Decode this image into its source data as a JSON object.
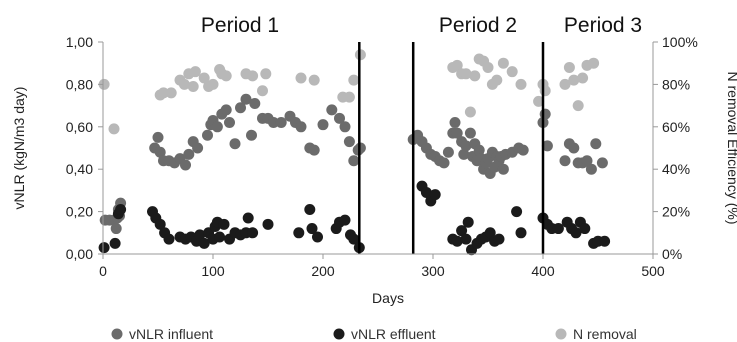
{
  "chart_data": {
    "type": "scatter",
    "x": {
      "label": "Days",
      "lim": [
        0,
        500
      ],
      "ticks": [
        "0",
        "100",
        "200",
        "300",
        "400",
        "500"
      ]
    },
    "y_left": {
      "label": "vNLR (kgN/m3 day)",
      "lim": [
        0,
        1
      ],
      "ticks": [
        "0,00",
        "0,20",
        "0,40",
        "0,60",
        "0,80",
        "1,00"
      ]
    },
    "y_right": {
      "label": "N removal Efficiency (%)",
      "lim": [
        0,
        100
      ],
      "ticks": [
        "0%",
        "20%",
        "40%",
        "60%",
        "80%",
        "100%"
      ]
    },
    "period_labels": [
      "Period 1",
      "Period 2",
      "Period 3"
    ],
    "period_boundaries": [
      233,
      282,
      400
    ],
    "colors": {
      "influent": "#6b6b6b",
      "effluent": "#1b1b1b",
      "removal": "#b8b8b8"
    },
    "series": [
      {
        "name": "vNLR influent",
        "axis": "left",
        "points": [
          [
            2,
            0.16
          ],
          [
            6,
            0.16
          ],
          [
            10,
            0.16
          ],
          [
            13,
            0.17
          ],
          [
            15,
            0.18
          ],
          [
            16,
            0.24
          ],
          [
            14,
            0.21
          ],
          [
            12,
            0.12
          ],
          [
            47,
            0.5
          ],
          [
            50,
            0.55
          ],
          [
            52,
            0.48
          ],
          [
            55,
            0.44
          ],
          [
            60,
            0.44
          ],
          [
            65,
            0.43
          ],
          [
            70,
            0.45
          ],
          [
            75,
            0.42
          ],
          [
            78,
            0.47
          ],
          [
            82,
            0.53
          ],
          [
            86,
            0.5
          ],
          [
            95,
            0.56
          ],
          [
            98,
            0.61
          ],
          [
            100,
            0.63
          ],
          [
            104,
            0.6
          ],
          [
            108,
            0.66
          ],
          [
            112,
            0.68
          ],
          [
            115,
            0.62
          ],
          [
            120,
            0.52
          ],
          [
            125,
            0.69
          ],
          [
            130,
            0.73
          ],
          [
            135,
            0.56
          ],
          [
            138,
            0.71
          ],
          [
            145,
            0.64
          ],
          [
            150,
            0.64
          ],
          [
            155,
            0.62
          ],
          [
            162,
            0.62
          ],
          [
            170,
            0.65
          ],
          [
            175,
            0.62
          ],
          [
            180,
            0.6
          ],
          [
            188,
            0.5
          ],
          [
            192,
            0.49
          ],
          [
            200,
            0.61
          ],
          [
            208,
            0.68
          ],
          [
            215,
            0.64
          ],
          [
            220,
            0.6
          ],
          [
            224,
            0.53
          ],
          [
            228,
            0.44
          ],
          [
            232,
            0.49
          ],
          [
            234,
            0.5
          ],
          [
            282,
            0.54
          ],
          [
            286,
            0.56
          ],
          [
            290,
            0.53
          ],
          [
            294,
            0.5
          ],
          [
            298,
            0.47
          ],
          [
            302,
            0.46
          ],
          [
            306,
            0.44
          ],
          [
            310,
            0.43
          ],
          [
            314,
            0.48
          ],
          [
            318,
            0.57
          ],
          [
            320,
            0.62
          ],
          [
            322,
            0.57
          ],
          [
            326,
            0.53
          ],
          [
            328,
            0.47
          ],
          [
            330,
            0.51
          ],
          [
            334,
            0.57
          ],
          [
            336,
            0.46
          ],
          [
            338,
            0.52
          ],
          [
            340,
            0.44
          ],
          [
            342,
            0.49
          ],
          [
            344,
            0.45
          ],
          [
            346,
            0.4
          ],
          [
            348,
            0.43
          ],
          [
            350,
            0.45
          ],
          [
            352,
            0.38
          ],
          [
            354,
            0.48
          ],
          [
            356,
            0.41
          ],
          [
            358,
            0.46
          ],
          [
            360,
            0.44
          ],
          [
            362,
            0.46
          ],
          [
            364,
            0.4
          ],
          [
            366,
            0.47
          ],
          [
            372,
            0.48
          ],
          [
            378,
            0.5
          ],
          [
            382,
            0.49
          ],
          [
            400,
            0.62
          ],
          [
            402,
            0.66
          ],
          [
            404,
            0.51
          ],
          [
            420,
            0.44
          ],
          [
            424,
            0.52
          ],
          [
            428,
            0.5
          ],
          [
            432,
            0.43
          ],
          [
            436,
            0.43
          ],
          [
            440,
            0.44
          ],
          [
            444,
            0.4
          ],
          [
            448,
            0.52
          ],
          [
            454,
            0.43
          ]
        ]
      },
      {
        "name": "vNLR effluent",
        "axis": "left",
        "points": [
          [
            1,
            0.03
          ],
          [
            11,
            0.05
          ],
          [
            14,
            0.19
          ],
          [
            16,
            0.21
          ],
          [
            45,
            0.2
          ],
          [
            48,
            0.17
          ],
          [
            52,
            0.14
          ],
          [
            56,
            0.1
          ],
          [
            60,
            0.07
          ],
          [
            70,
            0.08
          ],
          [
            75,
            0.07
          ],
          [
            80,
            0.08
          ],
          [
            85,
            0.06
          ],
          [
            88,
            0.09
          ],
          [
            92,
            0.05
          ],
          [
            96,
            0.1
          ],
          [
            100,
            0.07
          ],
          [
            102,
            0.13
          ],
          [
            104,
            0.15
          ],
          [
            106,
            0.08
          ],
          [
            110,
            0.14
          ],
          [
            115,
            0.07
          ],
          [
            120,
            0.1
          ],
          [
            125,
            0.09
          ],
          [
            130,
            0.1
          ],
          [
            132,
            0.17
          ],
          [
            136,
            0.1
          ],
          [
            150,
            0.14
          ],
          [
            178,
            0.1
          ],
          [
            188,
            0.21
          ],
          [
            190,
            0.12
          ],
          [
            195,
            0.08
          ],
          [
            212,
            0.12
          ],
          [
            215,
            0.15
          ],
          [
            220,
            0.16
          ],
          [
            225,
            0.09
          ],
          [
            228,
            0.07
          ],
          [
            233,
            0.03
          ],
          [
            290,
            0.32
          ],
          [
            294,
            0.29
          ],
          [
            298,
            0.25
          ],
          [
            302,
            0.28
          ],
          [
            318,
            0.07
          ],
          [
            322,
            0.06
          ],
          [
            326,
            0.11
          ],
          [
            330,
            0.07
          ],
          [
            332,
            0.15
          ],
          [
            335,
            0.02
          ],
          [
            340,
            0.05
          ],
          [
            344,
            0.07
          ],
          [
            348,
            0.08
          ],
          [
            352,
            0.1
          ],
          [
            356,
            0.06
          ],
          [
            360,
            0.07
          ],
          [
            376,
            0.2
          ],
          [
            380,
            0.1
          ],
          [
            400,
            0.17
          ],
          [
            404,
            0.14
          ],
          [
            408,
            0.12
          ],
          [
            414,
            0.12
          ],
          [
            422,
            0.15
          ],
          [
            426,
            0.12
          ],
          [
            430,
            0.1
          ],
          [
            434,
            0.15
          ],
          [
            438,
            0.12
          ],
          [
            446,
            0.05
          ],
          [
            450,
            0.06
          ],
          [
            456,
            0.06
          ]
        ]
      },
      {
        "name": "N removal",
        "axis": "right",
        "points": [
          [
            1,
            80
          ],
          [
            10,
            59
          ],
          [
            52,
            75
          ],
          [
            55,
            76
          ],
          [
            62,
            76
          ],
          [
            70,
            82
          ],
          [
            74,
            80
          ],
          [
            78,
            85
          ],
          [
            82,
            79
          ],
          [
            84,
            86
          ],
          [
            92,
            83
          ],
          [
            96,
            79
          ],
          [
            100,
            80
          ],
          [
            106,
            87
          ],
          [
            108,
            85
          ],
          [
            112,
            84
          ],
          [
            130,
            85
          ],
          [
            136,
            84
          ],
          [
            145,
            77
          ],
          [
            148,
            85
          ],
          [
            180,
            83
          ],
          [
            192,
            82
          ],
          [
            218,
            74
          ],
          [
            224,
            74
          ],
          [
            228,
            82
          ],
          [
            234,
            94
          ],
          [
            318,
            88
          ],
          [
            322,
            89
          ],
          [
            326,
            85
          ],
          [
            330,
            85
          ],
          [
            334,
            67
          ],
          [
            338,
            84
          ],
          [
            342,
            92
          ],
          [
            346,
            91
          ],
          [
            350,
            88
          ],
          [
            354,
            80
          ],
          [
            358,
            82
          ],
          [
            364,
            90
          ],
          [
            372,
            86
          ],
          [
            380,
            80
          ],
          [
            396,
            72
          ],
          [
            400,
            80
          ],
          [
            402,
            77
          ],
          [
            420,
            80
          ],
          [
            424,
            88
          ],
          [
            428,
            82
          ],
          [
            432,
            70
          ],
          [
            436,
            83
          ],
          [
            440,
            89
          ],
          [
            446,
            90
          ]
        ]
      }
    ],
    "legend": {
      "position": "bottom",
      "entries": [
        "vNLR influent",
        "vNLR effluent",
        "N removal"
      ]
    }
  }
}
